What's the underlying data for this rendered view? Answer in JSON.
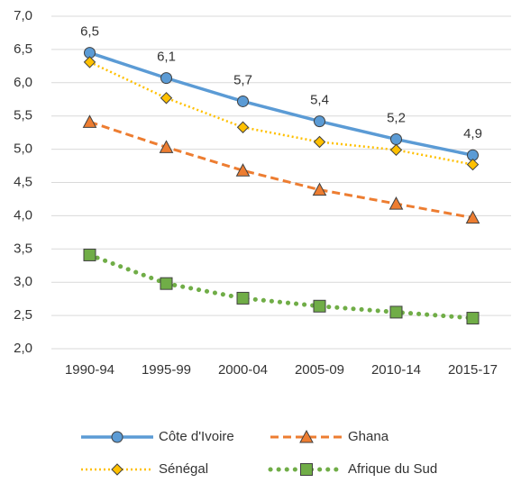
{
  "chart_data": {
    "type": "line",
    "categories": [
      "1990-94",
      "1995-99",
      "2000-04",
      "2005-09",
      "2010-14",
      "2015-17"
    ],
    "series": [
      {
        "name": "Côte d'Ivoire",
        "color": "#5b9bd5",
        "marker": "circle",
        "dash": "solid",
        "values": [
          6.45,
          6.07,
          5.72,
          5.42,
          5.15,
          4.91
        ],
        "value_labels": [
          "6,5",
          "6,1",
          "5,7",
          "5,4",
          "5,2",
          "4,9"
        ]
      },
      {
        "name": "Ghana",
        "color": "#ed7d31",
        "marker": "triangle",
        "dash": "dashed",
        "values": [
          5.41,
          5.03,
          4.68,
          4.39,
          4.18,
          3.97
        ]
      },
      {
        "name": "Sénégal",
        "color": "#ffc000",
        "marker": "diamond",
        "dash": "dotted",
        "values": [
          6.31,
          5.77,
          5.33,
          5.11,
          4.99,
          4.77
        ]
      },
      {
        "name": "Afrique du Sud",
        "color": "#70ad47",
        "marker": "square",
        "dash": "round-dotted",
        "values": [
          3.41,
          2.98,
          2.76,
          2.64,
          2.55,
          2.46
        ]
      }
    ],
    "ylim": [
      2,
      7
    ],
    "yticks": [
      {
        "value": 2,
        "label": "2,0"
      },
      {
        "value": 2.5,
        "label": "2,5"
      },
      {
        "value": 3,
        "label": "3,0"
      },
      {
        "value": 3.5,
        "label": "3,5"
      },
      {
        "value": 4,
        "label": "4,0"
      },
      {
        "value": 4.5,
        "label": "4,5"
      },
      {
        "value": 5,
        "label": "5,0"
      },
      {
        "value": 5.5,
        "label": "5,5"
      },
      {
        "value": 6,
        "label": "6,0"
      },
      {
        "value": 6.5,
        "label": "6,5"
      },
      {
        "value": 7,
        "label": "7,0"
      }
    ],
    "grid": true
  }
}
